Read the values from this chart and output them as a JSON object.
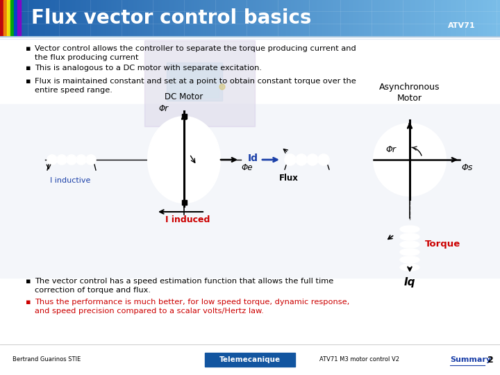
{
  "title": "Flux vector control basics",
  "title_color": "#FFFFFF",
  "bg_color": "#f0f4f8",
  "bullet1": "Vector control allows the controller to separate the torque producing current and\nthe flux producing current",
  "bullet2": "This is analogous to a DC motor with separate excitation.",
  "bullet3": "Flux is maintained constant and set at a point to obtain constant torque over the\nentire speed range.",
  "bullet4": "The vector control has a speed estimation function that allows the full time\ncorrection of torque and flux.",
  "bullet5": "Thus the performance is much better, for low speed torque, dynamic response,\nand speed precision compared to a scalar volts/Hertz law.",
  "bullet5_color": "#cc0000",
  "footer_left": "Bertrand Guarinos STIE",
  "footer_center": "Telemecanique",
  "footer_right": "ATV71 M3 motor control V2",
  "footer_summary": "Summary",
  "footer_page": "2",
  "dc_motor_label": "DC Motor",
  "phi_r_label": "Φr",
  "phi_e_label": "Φe",
  "i_inductive_label": "I inductive",
  "i_induced_label": "I induced",
  "async_motor_label": "Asynchronous\nMotor",
  "id_label": "Id",
  "flux_label": "Flux",
  "phi_r2_label": "Φr",
  "phi_s_label": "Φs",
  "torque_label": "Torque",
  "iq_label": "Iq",
  "blue_color": "#1a3fa8",
  "red_color": "#cc0000",
  "header_grad_left": "#1a5ca8",
  "header_grad_right": "#7abde8"
}
